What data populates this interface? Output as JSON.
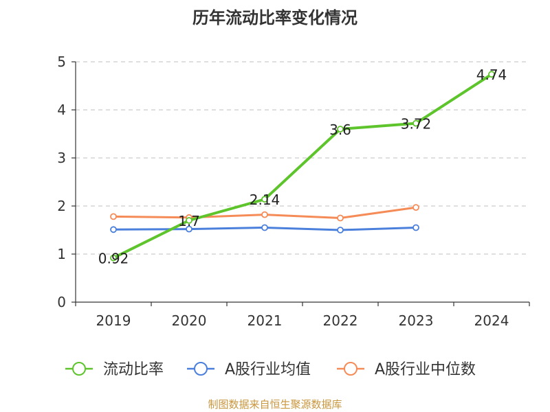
{
  "chart_data": {
    "type": "line",
    "title": "历年流动比率变化情况",
    "categories": [
      "2019",
      "2020",
      "2021",
      "2022",
      "2023",
      "2024"
    ],
    "ylim": [
      0,
      5
    ],
    "yticks": [
      "0",
      "1",
      "2",
      "3",
      "4",
      "5"
    ],
    "grid": "horizontal-dashed",
    "legend_position": "bottom",
    "series": [
      {
        "name": "流动比率",
        "color": "#5ec42c",
        "values": [
          0.92,
          1.7,
          2.14,
          3.6,
          3.72,
          4.74
        ],
        "labels": [
          "0.92",
          "1.7",
          "2.14",
          "3.6",
          "3.72",
          "4.74"
        ]
      },
      {
        "name": "A股行业均值",
        "color": "#4a7fdc",
        "values": [
          1.51,
          1.52,
          1.55,
          1.5,
          1.55,
          null
        ]
      },
      {
        "name": "A股行业中位数",
        "color": "#f58b57",
        "values": [
          1.78,
          1.76,
          1.82,
          1.75,
          1.97,
          null
        ]
      }
    ]
  },
  "footer": {
    "source": "制图数据来自恒生聚源数据库"
  }
}
